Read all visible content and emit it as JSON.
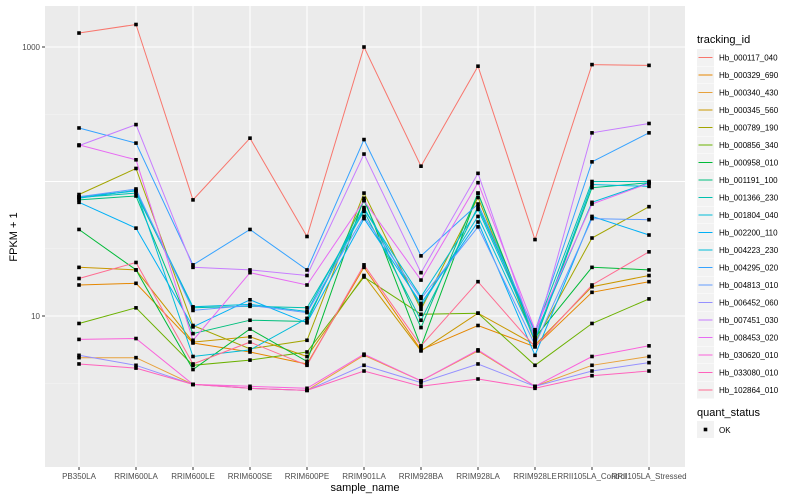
{
  "chart_data": {
    "type": "line",
    "title": "",
    "xlabel": "sample_name",
    "ylabel": "FPKM + 1",
    "yscale": "log10",
    "ylim": [
      2.7,
      1700
    ],
    "yticks": [
      10,
      1000
    ],
    "ytick_labels": [
      "10",
      "1000"
    ],
    "grid": true,
    "legend_position": "right",
    "categories": [
      "PB350LA",
      "RRIM600LA",
      "RRIM600LE",
      "RRIM600SE",
      "RRIM600PE",
      "RRIM901LA",
      "RRIM928BA",
      "RRIM928LA",
      "RRIM928LE",
      "RRII105LA_Control",
      "RRII105LA_Stressed"
    ],
    "series": [
      {
        "name": "Hb_000117_040",
        "color": "#F8766D",
        "values": [
          1270,
          1470,
          73,
          210,
          39,
          1000,
          130,
          720,
          37,
          740,
          730
        ]
      },
      {
        "name": "Hb_000329_690",
        "color": "#E58700",
        "values": [
          17,
          17.5,
          6.3,
          5.4,
          4.4,
          23,
          5.6,
          8.5,
          5.9,
          15,
          18
        ]
      },
      {
        "name": "Hb_000340_430",
        "color": "#E7A13C",
        "values": [
          4.9,
          4.9,
          3.1,
          2.9,
          2.8,
          5.1,
          3.3,
          5.5,
          3.0,
          4.3,
          5.0
        ]
      },
      {
        "name": "Hb_000345_560",
        "color": "#C99800",
        "values": [
          23,
          22,
          6.4,
          7.0,
          5.0,
          20,
          5.5,
          10.5,
          6.1,
          16.5,
          20
        ]
      },
      {
        "name": "Hb_000789_190",
        "color": "#A3A500",
        "values": [
          80,
          125,
          8.5,
          5.7,
          6.6,
          82,
          11.2,
          76,
          6.4,
          38,
          65
        ]
      },
      {
        "name": "Hb_000856_340",
        "color": "#6BB100",
        "values": [
          8.8,
          11.5,
          4.3,
          4.7,
          5.4,
          19.5,
          10.3,
          10.5,
          4.3,
          8.8,
          13.4
        ]
      },
      {
        "name": "Hb_000958_010",
        "color": "#00BA38",
        "values": [
          44,
          22,
          4.0,
          8.0,
          4.6,
          75,
          5.9,
          82,
          6.9,
          23,
          22
        ]
      },
      {
        "name": "Hb_001191_100",
        "color": "#00BF7D",
        "values": [
          73,
          78,
          7.4,
          9.3,
          9.1,
          72,
          8.2,
          82,
          6.5,
          90,
          98
        ]
      },
      {
        "name": "Hb_001366_230",
        "color": "#00C0AF",
        "values": [
          76,
          82,
          11.5,
          11.8,
          11.5,
          60,
          9.3,
          65,
          7.6,
          100,
          100
        ]
      },
      {
        "name": "Hb_001804_040",
        "color": "#00BCD8",
        "values": [
          77,
          85,
          11.7,
          12.2,
          10.8,
          64,
          11.8,
          55,
          6.7,
          95,
          92
        ]
      },
      {
        "name": "Hb_002200_110",
        "color": "#00B0F6",
        "values": [
          70,
          45,
          8.3,
          13.2,
          8.9,
          53,
          12.4,
          50,
          5.1,
          55,
          40
        ]
      },
      {
        "name": "Hb_004223_230",
        "color": "#00BCD8",
        "values": [
          75,
          86,
          5.0,
          5.6,
          9.6,
          62,
          13.9,
          62,
          7.2,
          70,
          98
        ]
      },
      {
        "name": "Hb_004295_020",
        "color": "#35A2FF",
        "values": [
          250,
          193,
          24,
          44,
          22,
          205,
          28,
          68,
          7.7,
          140,
          230
        ]
      },
      {
        "name": "Hb_004813_010",
        "color": "#619CFF",
        "values": [
          77,
          88,
          11.0,
          12.0,
          10.6,
          55,
          13.5,
          46,
          6.1,
          53,
          52
        ]
      },
      {
        "name": "Hb_006452_060",
        "color": "#9590FF",
        "values": [
          5.1,
          4.3,
          3.1,
          2.9,
          2.8,
          4.3,
          3.2,
          4.4,
          3.0,
          3.9,
          4.5
        ]
      },
      {
        "name": "Hb_007451_030",
        "color": "#C77CFF",
        "values": [
          185,
          265,
          23,
          22,
          20,
          160,
          21,
          115,
          6.8,
          230,
          270
        ]
      },
      {
        "name": "Hb_008453_020",
        "color": "#E76BF3",
        "values": [
          187,
          145,
          6.6,
          21,
          17,
          72,
          18.5,
          98,
          7.9,
          68,
          97
        ]
      },
      {
        "name": "Hb_030620_010",
        "color": "#FA62DB",
        "values": [
          6.7,
          6.8,
          3.1,
          3.0,
          2.9,
          5.2,
          3.3,
          5.6,
          3.0,
          5.0,
          6.0
        ]
      },
      {
        "name": "Hb_033080_010",
        "color": "#FF62BC",
        "values": [
          4.4,
          4.1,
          3.1,
          2.9,
          2.8,
          3.9,
          3.0,
          3.4,
          2.9,
          3.6,
          3.9
        ]
      },
      {
        "name": "Hb_102864_010",
        "color": "#FF6C91",
        "values": [
          19,
          25,
          4.4,
          6.4,
          4.3,
          24,
          6.0,
          18,
          5.9,
          17,
          30
        ]
      }
    ],
    "legends": [
      {
        "title": "tracking_id",
        "type": "color"
      },
      {
        "title": "quant_status",
        "type": "shape",
        "entries": [
          {
            "label": "OK",
            "symbol": "square"
          }
        ]
      }
    ]
  }
}
